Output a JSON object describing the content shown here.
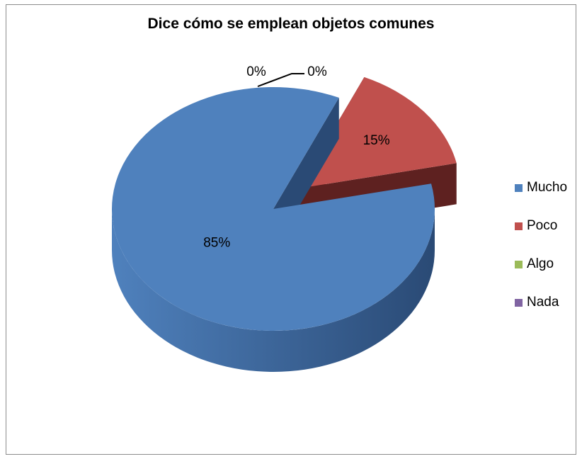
{
  "chart_data": {
    "type": "pie",
    "title": "Dice cómo se emplean objetos comunes",
    "categories": [
      "Mucho",
      "Poco",
      "Algo",
      "Nada"
    ],
    "values": [
      85,
      15,
      0,
      0
    ],
    "labels": [
      "85%",
      "15%",
      "0%",
      "0%"
    ],
    "colors": [
      "#4f81bd",
      "#c0504d",
      "#9bbb59",
      "#8064a2"
    ],
    "side_colors": [
      "#2a4a75",
      "#5e2120",
      "#5b7030",
      "#4b3a63"
    ],
    "legend_position": "right",
    "style": "3d-exploded"
  }
}
